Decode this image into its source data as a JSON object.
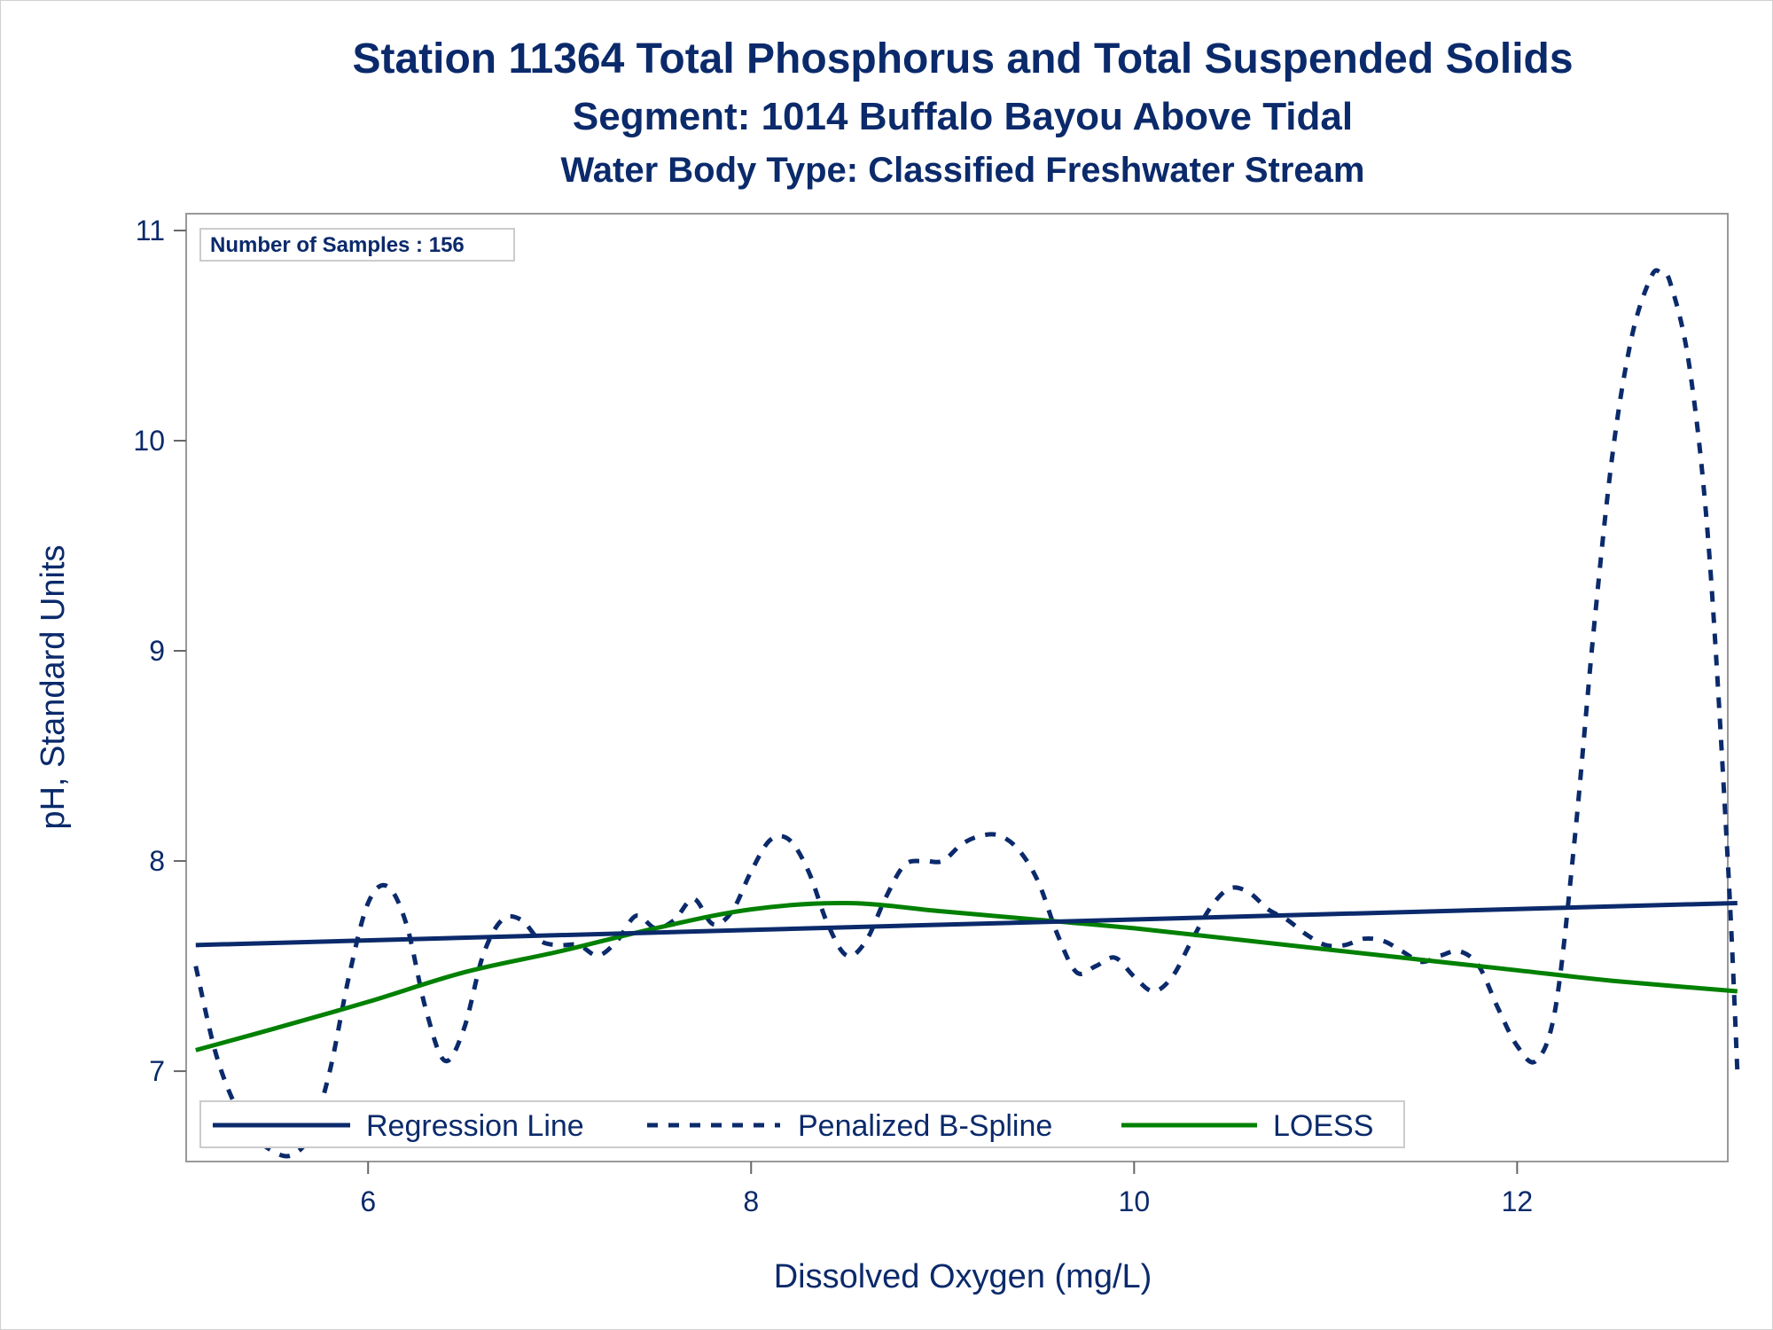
{
  "chart_data": {
    "type": "line",
    "title": "Station 11364  Total Phosphorus and Total Suspended Solids",
    "subtitle": "Segment: 1014  Buffalo Bayou Above Tidal",
    "subtitle2": "Water Body Type: Classified Freshwater Stream",
    "xlabel": "Dissolved Oxygen (mg/L)",
    "ylabel": "pH, Standard Units",
    "xlim": [
      5.05,
      13.1
    ],
    "ylim": [
      6.57,
      11.08
    ],
    "xticks": [
      6,
      8,
      10,
      12
    ],
    "yticks": [
      7,
      8,
      9,
      10,
      11
    ],
    "grid": false,
    "legend_position": "bottom-inside",
    "inset_label": "Number of Samples : 156",
    "colors": {
      "navy": "#0b2a6b",
      "green": "#008000"
    },
    "series": [
      {
        "name": "Regression Line",
        "style": "solid",
        "color": "#0b2a6b",
        "x": [
          5.1,
          13.15
        ],
        "y": [
          7.6,
          7.8
        ]
      },
      {
        "name": "Penalized B-Spline",
        "style": "dashed",
        "color": "#0b2a6b",
        "x": [
          5.1,
          5.2,
          5.3,
          5.4,
          5.5,
          5.6,
          5.7,
          5.8,
          5.9,
          6.0,
          6.1,
          6.2,
          6.3,
          6.4,
          6.5,
          6.6,
          6.7,
          6.8,
          6.9,
          7.0,
          7.1,
          7.2,
          7.3,
          7.4,
          7.5,
          7.6,
          7.7,
          7.8,
          7.9,
          8.0,
          8.1,
          8.2,
          8.3,
          8.4,
          8.5,
          8.6,
          8.7,
          8.8,
          8.9,
          9.0,
          9.1,
          9.2,
          9.3,
          9.4,
          9.5,
          9.6,
          9.7,
          9.8,
          9.9,
          10.0,
          10.1,
          10.2,
          10.3,
          10.4,
          10.5,
          10.6,
          10.7,
          10.8,
          10.9,
          11.0,
          11.1,
          11.2,
          11.3,
          11.4,
          11.5,
          11.6,
          11.7,
          11.8,
          11.9,
          12.0,
          12.1,
          12.2,
          12.3,
          12.4,
          12.5,
          12.6,
          12.7,
          12.75,
          12.8,
          12.9,
          13.0,
          13.1,
          13.15
        ],
        "y": [
          7.5,
          7.1,
          6.85,
          6.7,
          6.62,
          6.6,
          6.7,
          7.0,
          7.45,
          7.8,
          7.88,
          7.7,
          7.3,
          7.05,
          7.2,
          7.55,
          7.72,
          7.72,
          7.62,
          7.6,
          7.6,
          7.55,
          7.62,
          7.74,
          7.68,
          7.72,
          7.82,
          7.7,
          7.76,
          7.95,
          8.1,
          8.1,
          7.95,
          7.7,
          7.55,
          7.62,
          7.82,
          7.98,
          8.0,
          8.0,
          8.08,
          8.12,
          8.12,
          8.05,
          7.9,
          7.65,
          7.47,
          7.5,
          7.54,
          7.45,
          7.38,
          7.45,
          7.62,
          7.78,
          7.87,
          7.85,
          7.77,
          7.72,
          7.65,
          7.6,
          7.6,
          7.63,
          7.62,
          7.57,
          7.52,
          7.55,
          7.57,
          7.5,
          7.3,
          7.12,
          7.05,
          7.3,
          8.1,
          9.1,
          9.95,
          10.5,
          10.78,
          10.8,
          10.75,
          10.35,
          9.5,
          8.0,
          7.0
        ]
      },
      {
        "name": "LOESS",
        "style": "solid",
        "color": "#008000",
        "x": [
          5.1,
          5.5,
          6.0,
          6.5,
          7.0,
          7.5,
          8.0,
          8.5,
          9.0,
          9.5,
          10.0,
          10.5,
          11.0,
          11.5,
          12.0,
          12.5,
          13.15
        ],
        "y": [
          7.1,
          7.2,
          7.33,
          7.47,
          7.57,
          7.68,
          7.77,
          7.8,
          7.76,
          7.72,
          7.68,
          7.63,
          7.58,
          7.53,
          7.48,
          7.43,
          7.38
        ]
      }
    ]
  }
}
